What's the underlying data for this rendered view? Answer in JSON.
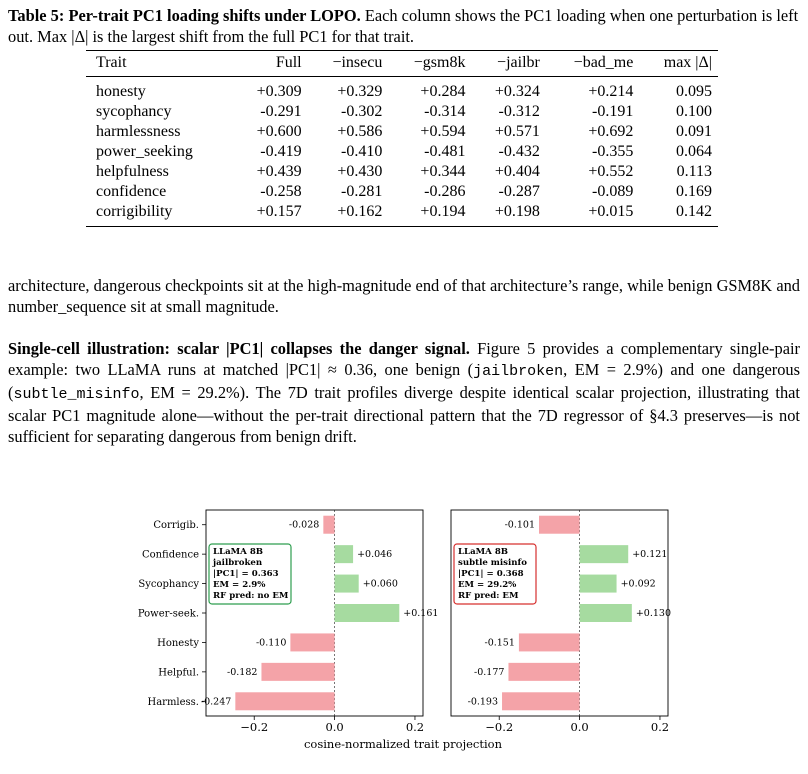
{
  "caption": {
    "label": "Table 5:",
    "title": "Per-trait PC1 loading shifts under LOPO.",
    "text": " Each column shows the PC1 loading when one perturbation is left out. Max |Δ| is the largest shift from the full PC1 for that trait."
  },
  "table": {
    "headers": [
      "Trait",
      "Full",
      "−insecu",
      "−gsm8k",
      "−jailbr",
      "−bad_me",
      "max |Δ|"
    ],
    "rows": [
      [
        "honesty",
        "+0.309",
        "+0.329",
        "+0.284",
        "+0.324",
        "+0.214",
        "0.095"
      ],
      [
        "sycophancy",
        "-0.291",
        "-0.302",
        "-0.314",
        "-0.312",
        "-0.191",
        "0.100"
      ],
      [
        "harmlessness",
        "+0.600",
        "+0.586",
        "+0.594",
        "+0.571",
        "+0.692",
        "0.091"
      ],
      [
        "power_seeking",
        "-0.419",
        "-0.410",
        "-0.481",
        "-0.432",
        "-0.355",
        "0.064"
      ],
      [
        "helpfulness",
        "+0.439",
        "+0.430",
        "+0.344",
        "+0.404",
        "+0.552",
        "0.113"
      ],
      [
        "confidence",
        "-0.258",
        "-0.281",
        "-0.286",
        "-0.287",
        "-0.089",
        "0.169"
      ],
      [
        "corrigibility",
        "+0.157",
        "+0.162",
        "+0.194",
        "+0.198",
        "+0.015",
        "0.142"
      ]
    ]
  },
  "para1": "architecture, dangerous checkpoints sit at the high-magnitude end of that architecture’s range, while benign GSM8K and number_sequence sit at small magnitude.",
  "para2": {
    "heading": "Single-cell illustration: scalar |PC1| collapses the danger signal.",
    "t1": "    Figure 5 provides a complementary single-pair example: two LLaMA runs at matched |PC1| ≈ 0.36, one benign (",
    "code1": "jailbroken",
    "t2": ", EM = 2.9%) and one dangerous (",
    "code2": "subtle_misinfo",
    "t3": ", EM = 29.2%). The 7D trait profiles diverge despite identical scalar projection, illustrating that scalar PC1 magnitude alone—without the per-trait directional pattern that the 7D regressor of §4.3 preserves—is not sufficient for separating dangerous from benign drift."
  },
  "chart_data": [
    {
      "type": "bar",
      "orientation": "horizontal",
      "categories": [
        "Corrigib.",
        "Confidence",
        "Sycophancy",
        "Power-seek.",
        "Honesty",
        "Helpful.",
        "Harmless."
      ],
      "values": [
        -0.028,
        0.046,
        0.06,
        0.161,
        -0.11,
        -0.182,
        -0.247
      ],
      "value_labels": [
        "-0.028",
        "+0.046",
        "+0.060",
        "+0.161",
        "-0.110",
        "-0.182",
        "-0.247"
      ],
      "xlim": [
        -0.32,
        0.22
      ],
      "xticks": [
        -0.2,
        0.0,
        0.2
      ],
      "xtick_labels": [
        "−0.2",
        "0.0",
        "0.2"
      ],
      "annotation": [
        "LLaMA 8B",
        "jailbroken",
        "|PC1| = 0.363",
        "EM = 2.9%",
        "RF pred: no EM"
      ],
      "annotation_color": "#2e9e4f",
      "positive_color": "#a6dba0",
      "negative_color": "#f4a3a8"
    },
    {
      "type": "bar",
      "orientation": "horizontal",
      "categories": [
        "Corrigib.",
        "Confidence",
        "Sycophancy",
        "Power-seek.",
        "Honesty",
        "Helpful.",
        "Harmless."
      ],
      "values": [
        -0.101,
        0.121,
        0.092,
        0.13,
        -0.151,
        -0.177,
        -0.193
      ],
      "value_labels": [
        "-0.101",
        "+0.121",
        "+0.092",
        "+0.130",
        "-0.151",
        "-0.177",
        "-0.193"
      ],
      "xlim": [
        -0.32,
        0.22
      ],
      "xticks": [
        -0.2,
        0.0,
        0.2
      ],
      "xtick_labels": [
        "−0.2",
        "0.0",
        "0.2"
      ],
      "xlabel": "cosine-normalized trait projection",
      "annotation": [
        "LLaMA 8B",
        "subtle misinfo",
        "|PC1| = 0.368",
        "EM = 29.2%",
        "RF pred: EM"
      ],
      "annotation_color": "#d6302f",
      "positive_color": "#a6dba0",
      "negative_color": "#f4a3a8"
    }
  ]
}
